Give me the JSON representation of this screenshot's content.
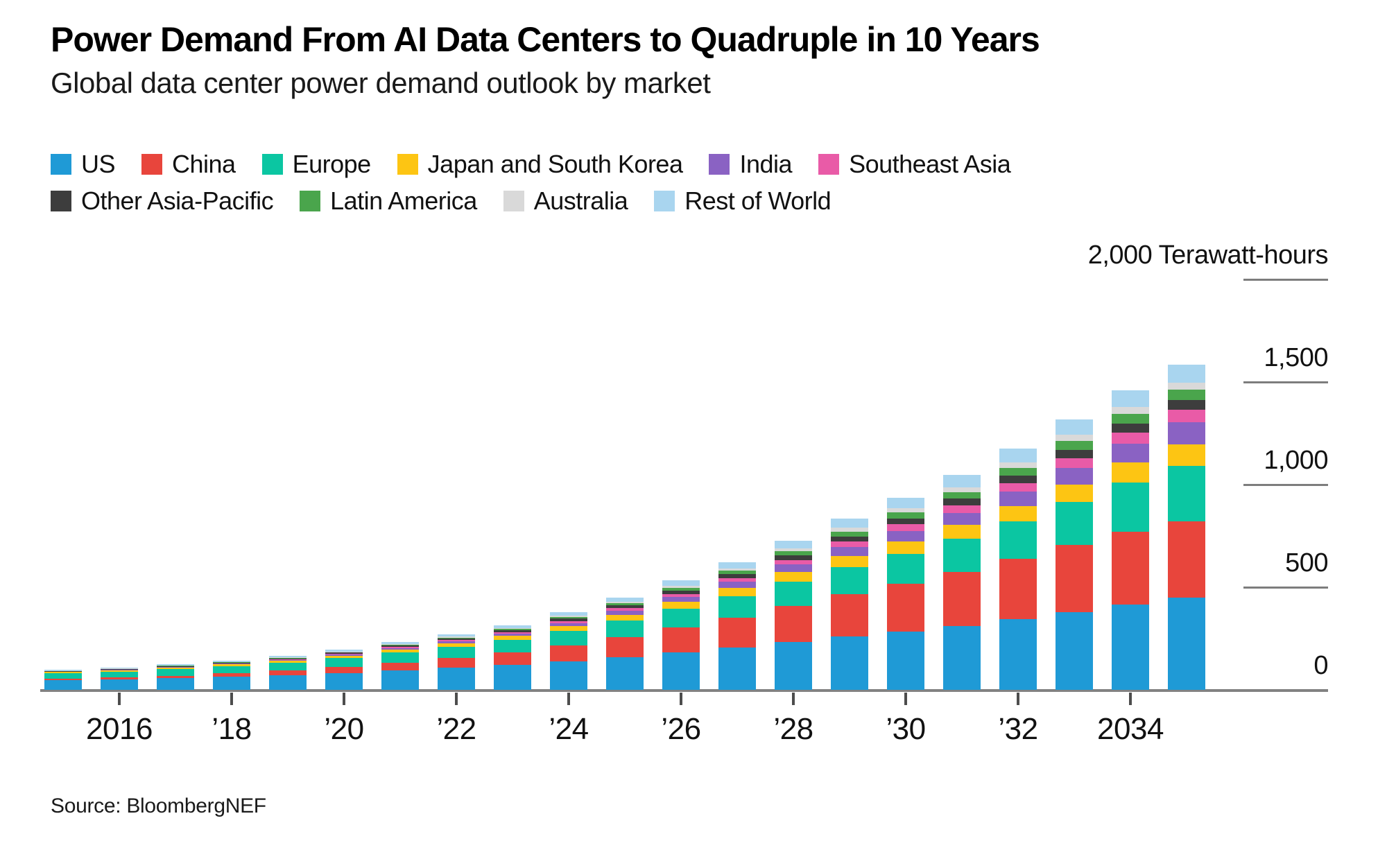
{
  "title": "Power Demand From AI Data Centers to Quadruple in 10 Years",
  "subtitle": "Global data center power demand outlook by market",
  "source": "Source: BloombergNEF",
  "legend_rows": [
    [
      "US",
      "China",
      "Europe",
      "Japan and South Korea",
      "India",
      "Southeast Asia"
    ],
    [
      "Other Asia-Pacific",
      "Latin America",
      "Australia",
      "Rest of World"
    ]
  ],
  "chart_data": {
    "type": "bar",
    "stacked": true,
    "title": "Power Demand From AI Data Centers to Quadruple in 10 Years",
    "subtitle": "Global data center power demand outlook by market",
    "unit": "Terawatt-hours",
    "ylim": [
      0,
      2000
    ],
    "grid": "right-side tick dashes only, labels above ticks",
    "legend_position": "top-left, two rows",
    "x": [
      2015,
      2016,
      2017,
      2018,
      2019,
      2020,
      2021,
      2022,
      2023,
      2024,
      2025,
      2026,
      2027,
      2028,
      2029,
      2030,
      2031,
      2032,
      2033,
      2034,
      2035
    ],
    "x_ticks": [
      {
        "year": 2016,
        "label": "2016"
      },
      {
        "year": 2018,
        "label": "’18"
      },
      {
        "year": 2020,
        "label": "’20"
      },
      {
        "year": 2022,
        "label": "’22"
      },
      {
        "year": 2024,
        "label": "’24"
      },
      {
        "year": 2026,
        "label": "’26"
      },
      {
        "year": 2028,
        "label": "’28"
      },
      {
        "year": 2030,
        "label": "’30"
      },
      {
        "year": 2032,
        "label": "’32"
      },
      {
        "year": 2034,
        "label": "2034"
      }
    ],
    "y_ticks": [
      {
        "value": 2000,
        "label": "2,000 Terawatt-hours"
      },
      {
        "value": 1500,
        "label": "1,500"
      },
      {
        "value": 1000,
        "label": "1,000"
      },
      {
        "value": 500,
        "label": "500"
      },
      {
        "value": 0,
        "label": "0"
      }
    ],
    "series": [
      {
        "name": "US",
        "color": "#1f9ad6",
        "values": [
          46,
          50,
          56,
          63,
          71,
          82,
          95,
          108,
          121,
          140,
          160,
          183,
          207,
          234,
          261,
          285,
          312,
          345,
          380,
          415,
          450
        ]
      },
      {
        "name": "China",
        "color": "#e8453c",
        "values": [
          8,
          10,
          13,
          17,
          22,
          29,
          38,
          48,
          60,
          77,
          97,
          120,
          146,
          175,
          205,
          233,
          262,
          293,
          327,
          355,
          372
        ]
      },
      {
        "name": "Europe",
        "color": "#0bc6a2",
        "values": [
          26,
          28,
          31,
          34,
          38,
          43,
          49,
          55,
          61,
          70,
          80,
          91,
          103,
          117,
          131,
          145,
          161,
          182,
          207,
          240,
          270
        ]
      },
      {
        "name": "Japan and South Korea",
        "color": "#fdc513",
        "values": [
          7,
          8,
          9,
          10,
          11,
          13,
          15,
          17,
          20,
          24,
          29,
          34,
          40,
          47,
          54,
          61,
          68,
          77,
          87,
          98,
          105
        ]
      },
      {
        "name": "India",
        "color": "#8a62c3",
        "values": [
          1,
          1.5,
          2,
          3,
          4,
          5,
          7,
          9,
          12,
          15,
          19,
          24,
          30,
          37,
          44,
          51,
          60,
          70,
          80,
          92,
          108
        ]
      },
      {
        "name": "Southeast Asia",
        "color": "#e95ba7",
        "values": [
          1,
          1.5,
          2,
          2.5,
          3,
          4,
          5,
          6,
          8,
          10,
          13,
          16,
          19,
          23,
          27,
          31,
          36,
          41,
          47,
          53,
          61
        ]
      },
      {
        "name": "Other Asia-Pacific",
        "color": "#3d3d3d",
        "values": [
          2,
          2.5,
          3,
          3.5,
          4,
          5,
          6,
          7,
          9,
          11,
          13,
          16,
          19,
          23,
          26,
          30,
          33,
          37,
          41,
          45,
          47
        ]
      },
      {
        "name": "Latin America",
        "color": "#4aa54c",
        "values": [
          1,
          1.5,
          2,
          2,
          2.5,
          3,
          4,
          5,
          6,
          8,
          10,
          13,
          16,
          20,
          24,
          28,
          32,
          38,
          43,
          48,
          51
        ]
      },
      {
        "name": "Australia",
        "color": "#d9d9d9",
        "values": [
          1,
          1.5,
          2,
          2,
          2.5,
          3,
          4,
          4,
          5,
          6,
          8,
          10,
          12,
          15,
          18,
          21,
          24,
          27,
          30,
          32,
          34
        ]
      },
      {
        "name": "Rest of World",
        "color": "#a9d5ef",
        "values": [
          4,
          4.5,
          5,
          6,
          7,
          8,
          10,
          12,
          14,
          17,
          21,
          26,
          31,
          37,
          44,
          51,
          58,
          67,
          76,
          82,
          88
        ]
      }
    ]
  }
}
